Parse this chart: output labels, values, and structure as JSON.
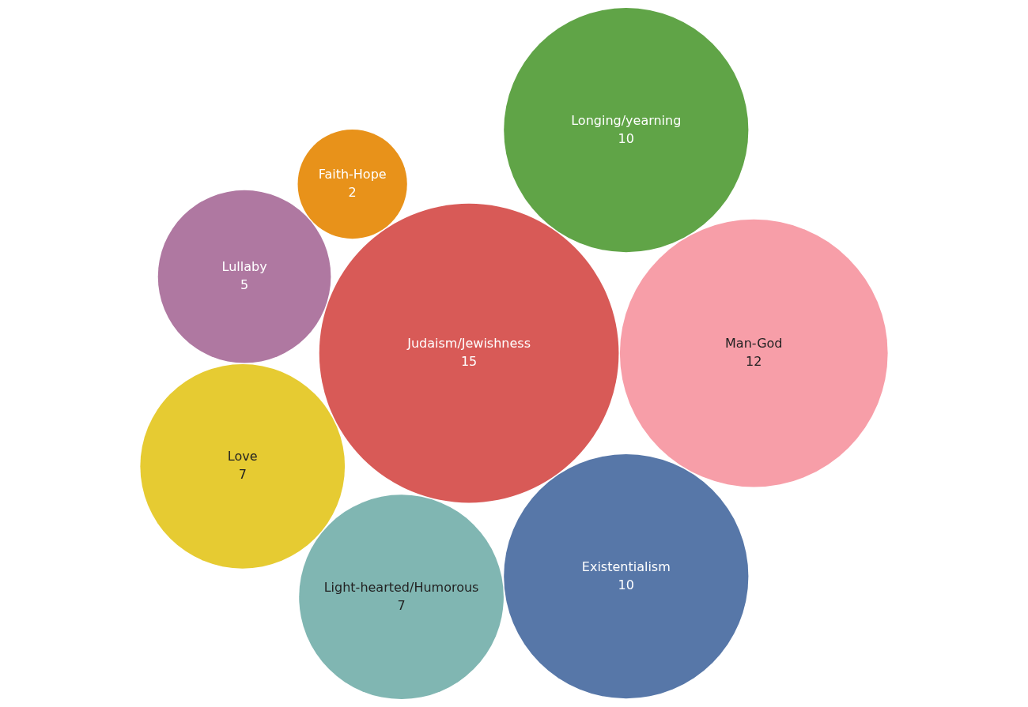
{
  "chart_data": {
    "type": "other",
    "categories": [
      "Light-hearted/Humorous",
      "Existentialism",
      "Longing/yearning",
      "Faith-Hope",
      "Man-God",
      "Lullaby",
      "Judaism/Jewishness",
      "Love"
    ],
    "values": [
      7,
      10,
      10,
      2,
      12,
      5,
      15,
      7
    ],
    "colors": [
      "#80b6b2",
      "#5777a8",
      "#60a447",
      "#e8921a",
      "#f79ea8",
      "#af78a1",
      "#d85a57",
      "#e6cb32"
    ],
    "data_labels": true
  }
}
